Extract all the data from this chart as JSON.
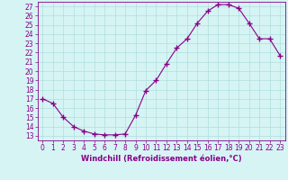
{
  "x": [
    0,
    1,
    2,
    3,
    4,
    5,
    6,
    7,
    8,
    9,
    10,
    11,
    12,
    13,
    14,
    15,
    16,
    17,
    18,
    19,
    20,
    21,
    22,
    23
  ],
  "y": [
    17,
    16.5,
    15,
    14,
    13.5,
    13.2,
    13.1,
    13.1,
    13.2,
    15.2,
    17.9,
    19.0,
    20.8,
    22.5,
    23.5,
    25.2,
    26.5,
    27.2,
    27.2,
    26.8,
    25.2,
    23.5,
    23.5,
    21.7
  ],
  "line_color": "#880088",
  "marker": "+",
  "marker_size": 4,
  "marker_linewidth": 1.0,
  "background_color": "#d6f4f4",
  "grid_color": "#b0dede",
  "xlabel": "Windchill (Refroidissement éolien,°C)",
  "ylabel": "",
  "title": "",
  "xlim": [
    -0.5,
    23.5
  ],
  "ylim": [
    12.5,
    27.5
  ],
  "yticks": [
    13,
    14,
    15,
    16,
    17,
    18,
    19,
    20,
    21,
    22,
    23,
    24,
    25,
    26,
    27
  ],
  "xticks": [
    0,
    1,
    2,
    3,
    4,
    5,
    6,
    7,
    8,
    9,
    10,
    11,
    12,
    13,
    14,
    15,
    16,
    17,
    18,
    19,
    20,
    21,
    22,
    23
  ],
  "tick_color": "#880088",
  "label_color": "#880088",
  "spine_color": "#880088",
  "font_size": 5.5,
  "xlabel_fontsize": 6.0,
  "linewidth": 0.8
}
